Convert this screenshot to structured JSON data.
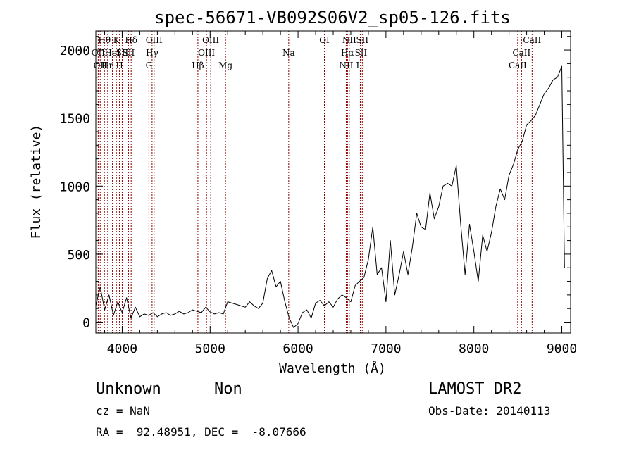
{
  "chart_data": {
    "type": "line",
    "title": "spec-56671-VB092S06V2_sp05-126.fits",
    "xlabel": "Wavelength (Å)",
    "ylabel": "Flux (relative)",
    "xlim": [
      3700,
      9100
    ],
    "ylim": [
      -80,
      2140
    ],
    "x_ticks": [
      4000,
      5000,
      6000,
      7000,
      8000,
      9000
    ],
    "x_tick_labels": [
      "4000",
      "5000",
      "6000",
      "7000",
      "8000",
      "9000"
    ],
    "y_ticks": [
      0,
      500,
      1000,
      1500,
      2000
    ],
    "y_tick_labels": [
      "0",
      "500",
      "1000",
      "1500",
      "2000"
    ],
    "grid": false,
    "line_color": "#000000",
    "marker_color": "#8b0000",
    "series": [
      {
        "x": [
          3700,
          3750,
          3800,
          3850,
          3900,
          3950,
          4000,
          4050,
          4100,
          4150,
          4200,
          4250,
          4300,
          4350,
          4400,
          4450,
          4500,
          4550,
          4600,
          4650,
          4700,
          4750,
          4800,
          4850,
          4900,
          4950,
          5000,
          5050,
          5100,
          5150,
          5200,
          5250,
          5300,
          5350,
          5400,
          5450,
          5500,
          5550,
          5600,
          5650,
          5700,
          5750,
          5800,
          5850,
          5900,
          5950,
          6000,
          6050,
          6100,
          6150,
          6200,
          6250,
          6300,
          6350,
          6400,
          6450,
          6500,
          6550,
          6600,
          6650,
          6700,
          6750,
          6800,
          6850,
          6900,
          6950,
          7000,
          7050,
          7100,
          7150,
          7200,
          7250,
          7300,
          7350,
          7400,
          7450,
          7500,
          7550,
          7600,
          7650,
          7700,
          7750,
          7800,
          7850,
          7900,
          7950,
          8000,
          8050,
          8100,
          8150,
          8200,
          8250,
          8300,
          8350,
          8400,
          8450,
          8500,
          8550,
          8600,
          8650,
          8700,
          8750,
          8800,
          8850,
          8900,
          8950,
          9000,
          9030
        ],
        "y": [
          120,
          260,
          90,
          200,
          50,
          150,
          70,
          180,
          30,
          110,
          40,
          60,
          50,
          70,
          40,
          60,
          70,
          50,
          60,
          80,
          60,
          70,
          90,
          80,
          70,
          110,
          75,
          60,
          70,
          60,
          150,
          140,
          130,
          120,
          110,
          150,
          120,
          100,
          140,
          320,
          380,
          260,
          300,
          150,
          30,
          -40,
          -10,
          70,
          90,
          30,
          140,
          160,
          120,
          150,
          110,
          170,
          200,
          180,
          150,
          270,
          300,
          330,
          460,
          700,
          350,
          400,
          150,
          600,
          200,
          350,
          520,
          350,
          550,
          800,
          700,
          680,
          950,
          760,
          850,
          1000,
          1020,
          1000,
          1150,
          720,
          350,
          720,
          520,
          300,
          640,
          520,
          660,
          850,
          980,
          900,
          1080,
          1160,
          1270,
          1330,
          1450,
          1480,
          1520,
          1600,
          1680,
          1720,
          1780,
          1800,
          1880,
          400
        ]
      }
    ],
    "line_markers": [
      {
        "wavelength": 3727,
        "label": "OII",
        "row": 2
      },
      {
        "wavelength": 3750,
        "label": "OII",
        "row": 3
      },
      {
        "wavelength": 3798,
        "label": "Hθ",
        "row": 1
      },
      {
        "wavelength": 3835,
        "label": "Hη",
        "row": 3
      },
      {
        "wavelength": 3889,
        "label": "HeI",
        "row": 2
      },
      {
        "wavelength": 3934,
        "label": "K",
        "row": 1
      },
      {
        "wavelength": 3969,
        "label": "H",
        "row": 3
      },
      {
        "wavelength": 4000,
        "label": "SII",
        "row": 2
      },
      {
        "wavelength": 4072,
        "label": "SII",
        "row": 2
      },
      {
        "wavelength": 4102,
        "label": "Hδ",
        "row": 1
      },
      {
        "wavelength": 4304,
        "label": "G",
        "row": 3
      },
      {
        "wavelength": 4340,
        "label": "Hγ",
        "row": 2
      },
      {
        "wavelength": 4363,
        "label": "OIII",
        "row": 1
      },
      {
        "wavelength": 4861,
        "label": "Hβ",
        "row": 3
      },
      {
        "wavelength": 4959,
        "label": "OIII",
        "row": 2
      },
      {
        "wavelength": 5007,
        "label": "OIII",
        "row": 1
      },
      {
        "wavelength": 5175,
        "label": "Mg",
        "row": 3
      },
      {
        "wavelength": 5894,
        "label": "Na",
        "row": 2
      },
      {
        "wavelength": 6300,
        "label": "OI",
        "row": 1
      },
      {
        "wavelength": 6548,
        "label": "NII",
        "row": 3
      },
      {
        "wavelength": 6563,
        "label": "Hα",
        "row": 2
      },
      {
        "wavelength": 6583,
        "label": "NII",
        "row": 1
      },
      {
        "wavelength": 6708,
        "label": "Li",
        "row": 3
      },
      {
        "wavelength": 6716,
        "label": "SII",
        "row": 2
      },
      {
        "wavelength": 6731,
        "label": "SII",
        "row": 1
      },
      {
        "wavelength": 8498,
        "label": "CaII",
        "row": 3
      },
      {
        "wavelength": 8542,
        "label": "CaII",
        "row": 2
      },
      {
        "wavelength": 8662,
        "label": "CaII",
        "row": 1
      }
    ]
  },
  "footer": {
    "class_label": "Unknown",
    "subclass_label": "Non",
    "survey_label": "LAMOST DR2",
    "cz_text": "cz = NaN",
    "obs_date_text": "Obs-Date: 20140113",
    "coords_text": "RA =  92.48951, DEC =  -8.07666"
  }
}
